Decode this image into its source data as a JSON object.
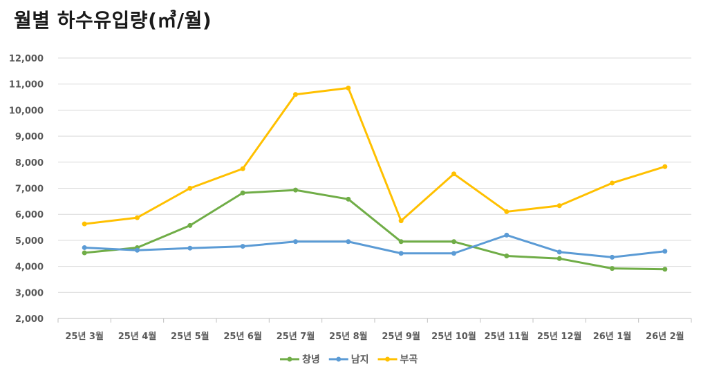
{
  "chart_data": {
    "type": "line",
    "title": "월별 하수유입량(㎥/월)",
    "categories": [
      "25년 3월",
      "25년 4월",
      "25년 5월",
      "25년 6월",
      "25년 7월",
      "25년 8월",
      "25년 9월",
      "25년 10월",
      "25년 11월",
      "25년 12월",
      "26년 1월",
      "26년 2월"
    ],
    "ylim": [
      2000,
      12000
    ],
    "yticks": [
      2000,
      3000,
      4000,
      5000,
      6000,
      7000,
      8000,
      9000,
      10000,
      11000,
      12000
    ],
    "grid": true,
    "legend": "bottom",
    "series": [
      {
        "name": "창녕",
        "color": "#70ad47",
        "values": [
          4520,
          4720,
          5570,
          6820,
          6930,
          6580,
          4950,
          4950,
          4400,
          4300,
          3920,
          3890
        ]
      },
      {
        "name": "남지",
        "color": "#5b9bd5",
        "values": [
          4720,
          4620,
          4700,
          4770,
          4950,
          4950,
          4500,
          4500,
          5200,
          4550,
          4350,
          4580
        ]
      },
      {
        "name": "부곡",
        "color": "#ffc000",
        "values": [
          5630,
          5870,
          7000,
          7750,
          10600,
          10850,
          5750,
          7550,
          6100,
          6330,
          7200,
          7830
        ]
      }
    ]
  }
}
